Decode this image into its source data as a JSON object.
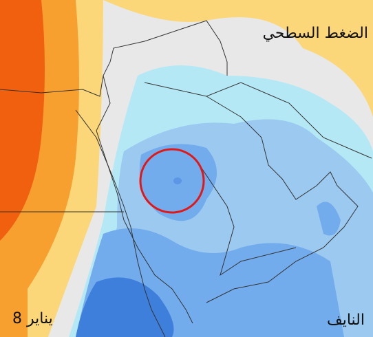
{
  "map": {
    "title": "الضغط السطحي",
    "date": "8 يناير",
    "author": "النايف"
  }
}
